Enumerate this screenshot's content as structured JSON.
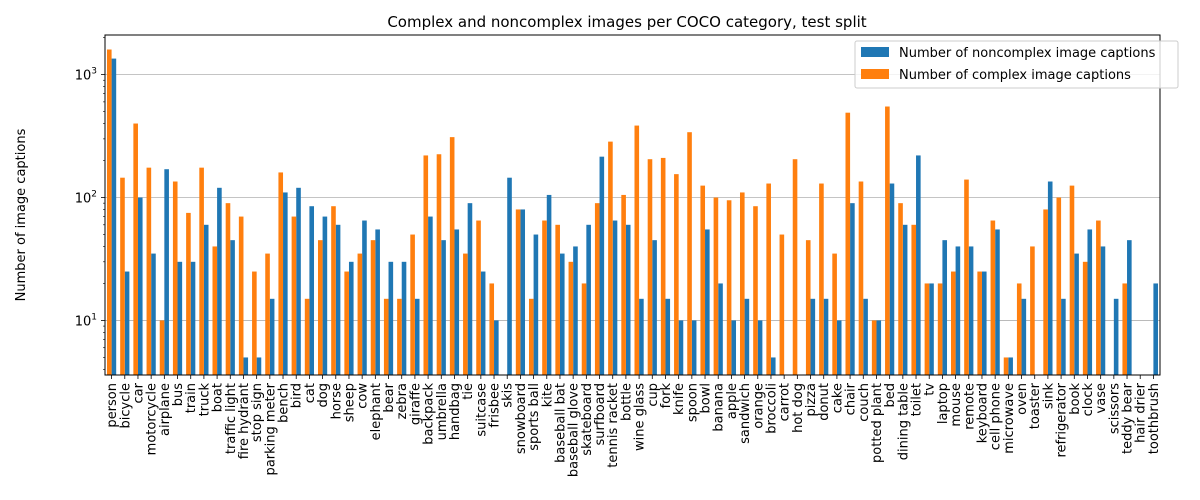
{
  "chart_data": {
    "type": "bar",
    "title": "Complex and noncomplex images per COCO category, test split",
    "xlabel": "",
    "ylabel": "Number of image captions",
    "yscale": "log",
    "ylim": [
      3.6,
      2100
    ],
    "yticks": [
      {
        "value": 10,
        "base": "10",
        "exp": "1"
      },
      {
        "value": 100,
        "base": "10",
        "exp": "2"
      },
      {
        "value": 1000,
        "base": "10",
        "exp": "3"
      }
    ],
    "grid": "y-major",
    "legend_position": "top-right",
    "colors": {
      "noncomplex": "#1f77b4",
      "complex": "#ff7f0e"
    },
    "categories": [
      "person",
      "bicycle",
      "car",
      "motorcycle",
      "airplane",
      "bus",
      "train",
      "truck",
      "boat",
      "traffic light",
      "fire hydrant",
      "stop sign",
      "parking meter",
      "bench",
      "bird",
      "cat",
      "dog",
      "horse",
      "sheep",
      "cow",
      "elephant",
      "bear",
      "zebra",
      "giraffe",
      "backpack",
      "umbrella",
      "handbag",
      "tie",
      "suitcase",
      "frisbee",
      "skis",
      "snowboard",
      "sports ball",
      "kite",
      "baseball bat",
      "baseball glove",
      "skateboard",
      "surfboard",
      "tennis racket",
      "bottle",
      "wine glass",
      "cup",
      "fork",
      "knife",
      "spoon",
      "bowl",
      "banana",
      "apple",
      "sandwich",
      "orange",
      "broccoli",
      "carrot",
      "hot dog",
      "pizza",
      "donut",
      "cake",
      "chair",
      "couch",
      "potted plant",
      "bed",
      "dining table",
      "toilet",
      "tv",
      "laptop",
      "mouse",
      "remote",
      "keyboard",
      "cell phone",
      "microwave",
      "oven",
      "toaster",
      "sink",
      "refrigerator",
      "book",
      "clock",
      "vase",
      "scissors",
      "teddy bear",
      "hair drier",
      "toothbrush"
    ],
    "series": [
      {
        "name": "Number of noncomplex image captions",
        "key": "noncomplex",
        "values": [
          1350,
          25,
          100,
          35,
          170,
          30,
          30,
          60,
          120,
          45,
          5,
          5,
          15,
          110,
          120,
          85,
          70,
          60,
          30,
          65,
          55,
          30,
          30,
          15,
          70,
          45,
          55,
          90,
          25,
          10,
          145,
          80,
          50,
          105,
          35,
          40,
          60,
          215,
          65,
          60,
          15,
          45,
          15,
          10,
          10,
          55,
          20,
          10,
          15,
          10,
          5,
          0,
          0,
          15,
          15,
          10,
          90,
          15,
          10,
          130,
          60,
          220,
          20,
          45,
          40,
          40,
          25,
          55,
          5,
          15,
          0,
          135,
          15,
          35,
          55,
          40,
          15,
          45,
          0,
          20
        ]
      },
      {
        "name": "Number of complex image captions",
        "key": "complex",
        "values": [
          1600,
          145,
          400,
          175,
          10,
          135,
          75,
          175,
          40,
          90,
          70,
          25,
          35,
          160,
          70,
          15,
          45,
          85,
          25,
          35,
          45,
          15,
          15,
          50,
          220,
          225,
          310,
          35,
          65,
          20,
          0,
          80,
          15,
          65,
          60,
          30,
          20,
          90,
          285,
          105,
          385,
          205,
          210,
          155,
          340,
          125,
          100,
          95,
          110,
          85,
          130,
          50,
          205,
          45,
          130,
          35,
          490,
          135,
          10,
          550,
          90,
          60,
          20,
          20,
          25,
          140,
          25,
          65,
          5,
          20,
          40,
          80,
          100,
          125,
          30,
          65,
          0,
          20,
          0,
          0
        ]
      }
    ]
  }
}
